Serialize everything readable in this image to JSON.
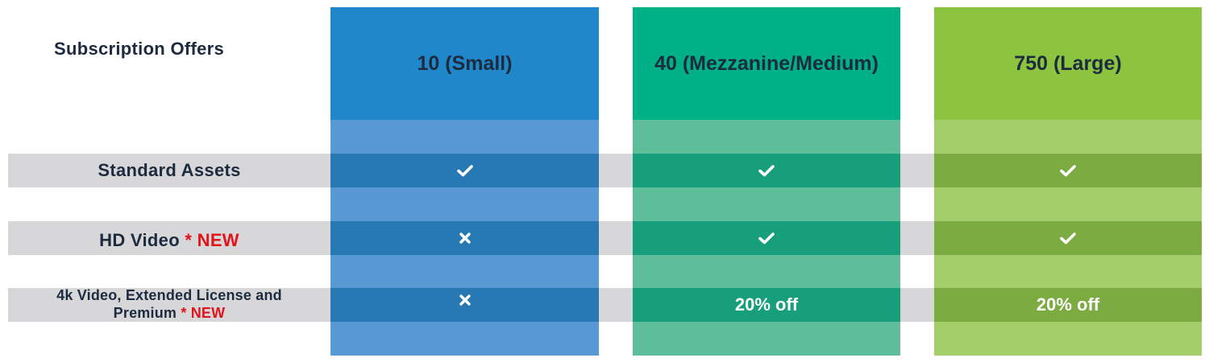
{
  "title": "Subscription Offers",
  "colors": {
    "small_header": "#1f87ca",
    "small_body": "#5899d4",
    "small_band": "#2779b3",
    "medium_header": "#00b086",
    "medium_body": "#5fbe9a",
    "medium_band": "#169f7a",
    "large_header": "#8cc43f",
    "large_body": "#a3ce6a",
    "large_band": "#7cab41",
    "row_band": "#d7d7d9",
    "text_dark": "#1d2b3e",
    "new_red": "#e3131b"
  },
  "plans": [
    {
      "name": "10 (Small)"
    },
    {
      "name": "40 (Mezzanine/Medium)"
    },
    {
      "name": "750 (Large)"
    }
  ],
  "rows": [
    {
      "label": "Standard Assets",
      "cells": [
        {
          "icon": "check-icon"
        },
        {
          "icon": "check-icon"
        },
        {
          "icon": "check-icon"
        }
      ]
    },
    {
      "label": "HD Video",
      "new_marker": "* NEW",
      "cells": [
        {
          "icon": "cross-icon"
        },
        {
          "icon": "check-icon"
        },
        {
          "icon": "check-icon"
        }
      ]
    },
    {
      "label_line1": "4k Video, Extended License and",
      "label_line2": "Premium",
      "new_marker": "* NEW",
      "cells": [
        {
          "icon": "cross-icon"
        },
        {
          "text": "20% off"
        },
        {
          "text": "20% off"
        }
      ]
    }
  ]
}
